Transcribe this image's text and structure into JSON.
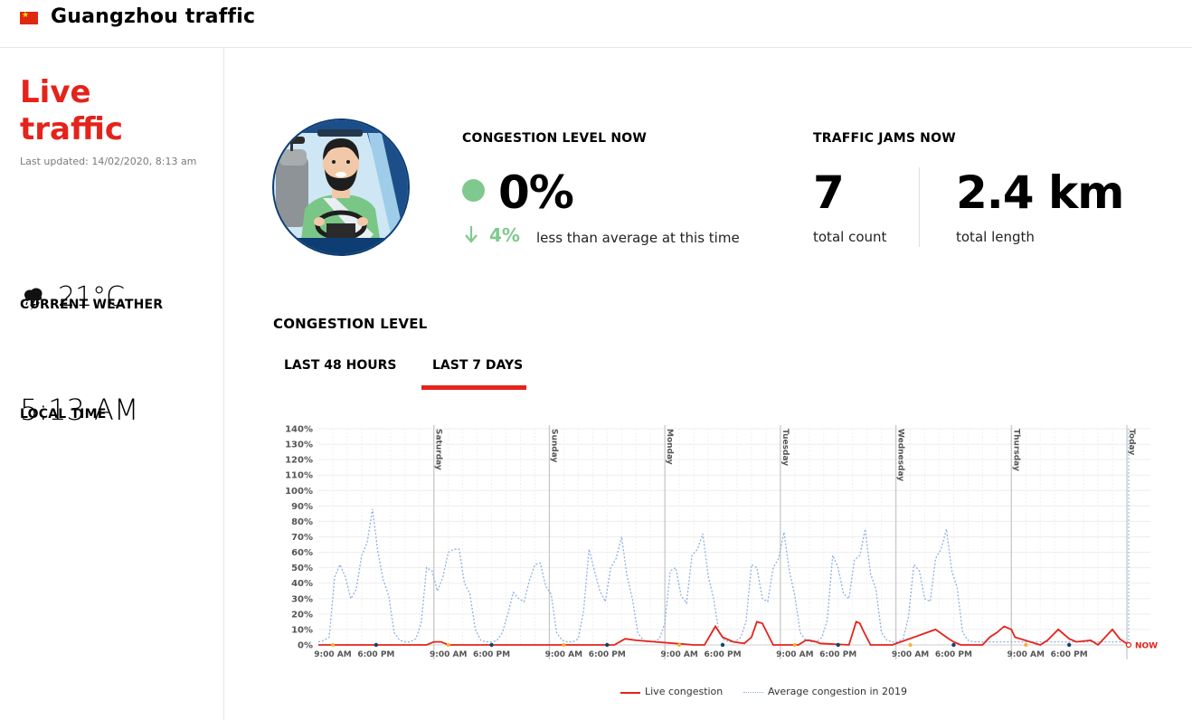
{
  "header": {
    "title": "Guangzhou traffic",
    "flag_color": "#de2910"
  },
  "sidebar": {
    "live_title": "Live traffic",
    "last_updated": "Last updated: 14/02/2020, 8:13 am",
    "weather_label": "CURRENT WEATHER",
    "weather_icon": "storm-cloud-icon",
    "temperature": "21°C",
    "local_time_label": "LOCAL TIME",
    "local_time": "5:13 AM"
  },
  "metrics": {
    "congestion_label": "CONGESTION LEVEL NOW",
    "congestion_value": "0%",
    "congestion_status_color": "#7fc98f",
    "trend_value": "4%",
    "trend_text": "less than average at this time",
    "jams_label": "TRAFFIC JAMS NOW",
    "jams_count": "7",
    "jams_count_label": "total count",
    "jams_length": "2.4 km",
    "jams_length_label": "total length"
  },
  "congestion_section": {
    "title": "CONGESTION LEVEL",
    "tabs": [
      {
        "label": "LAST 48 HOURS",
        "active": false
      },
      {
        "label": "LAST 7 DAYS",
        "active": true
      }
    ]
  },
  "chart_data": {
    "type": "line",
    "title": "CONGESTION LEVEL",
    "y_ticks": [
      "0%",
      "10%",
      "20%",
      "30%",
      "40%",
      "50%",
      "60%",
      "70%",
      "80%",
      "90%",
      "100%",
      "110%",
      "120%",
      "130%",
      "140%"
    ],
    "ylim": [
      0,
      140
    ],
    "day_labels": [
      "Saturday",
      "Sunday",
      "Monday",
      "Tuesday",
      "Wednesday",
      "Thursday",
      "Today"
    ],
    "x_tick_labels": [
      "9:00 AM",
      "6:00 PM"
    ],
    "now_label": "NOW",
    "legend": [
      {
        "name": "Live congestion",
        "color": "#e4231b",
        "style": "solid"
      },
      {
        "name": "Average congestion in 2019",
        "color": "#8fb0de",
        "style": "dotted"
      }
    ],
    "series": [
      {
        "name": "Live congestion",
        "hours": [
          0,
          60,
          64,
          68,
          72,
          164,
          170,
          176,
          208,
          214,
          220,
          224,
          230,
          236,
          240,
          243,
          246,
          252,
          258,
          266,
          270,
          272,
          276,
          278,
          294,
          298,
          300,
          302,
          306,
          310,
          318,
          342,
          348,
          352,
          356,
          368,
          372,
          376,
          380,
          384,
          386,
          400,
          404,
          410,
          416,
          420,
          428,
          432,
          440,
          444,
          449
        ],
        "values": [
          0,
          0,
          2,
          2,
          0,
          0,
          4,
          3,
          0,
          0,
          12,
          5,
          2,
          1,
          5,
          15,
          14,
          0,
          0,
          0,
          3,
          3,
          2,
          1,
          0,
          15,
          14,
          9,
          0,
          0,
          0,
          10,
          5,
          2,
          0,
          0,
          5,
          8,
          12,
          10,
          5,
          0,
          3,
          10,
          4,
          2,
          3,
          0,
          10,
          4,
          0
        ]
      },
      {
        "name": "Average congestion in 2019",
        "hours": [
          0,
          3,
          6,
          9,
          12,
          15,
          18,
          21,
          24,
          27,
          30,
          33,
          36,
          39,
          42,
          45,
          48,
          51,
          54,
          57,
          60,
          63,
          66,
          69,
          72,
          75,
          78,
          81,
          84,
          87,
          90,
          93,
          96,
          99,
          102,
          105,
          108,
          111,
          114,
          117,
          120,
          123,
          126,
          129,
          132,
          135,
          138,
          141,
          144,
          147,
          150,
          153,
          156,
          159,
          162,
          165,
          168,
          171,
          174,
          177,
          180,
          183,
          186,
          189,
          192,
          195,
          198,
          201,
          204,
          207,
          210,
          213,
          216,
          219,
          222,
          225,
          228,
          231,
          234,
          237,
          240,
          243,
          246,
          249,
          252,
          255,
          258,
          261,
          264,
          267,
          270,
          273,
          276,
          279,
          282,
          285,
          288,
          291,
          294,
          297,
          300,
          303,
          306,
          309,
          312,
          315,
          318,
          321,
          324,
          327,
          330,
          333,
          336,
          339,
          342,
          345,
          348,
          351,
          354,
          357,
          360,
          363,
          366,
          369,
          372,
          375,
          378,
          381,
          384,
          387,
          390,
          393,
          396,
          399,
          402,
          405,
          408,
          411,
          414,
          417,
          420,
          423,
          426,
          429,
          432,
          435,
          438,
          441,
          444,
          447,
          449
        ],
        "values": [
          2,
          3,
          5,
          44,
          52,
          44,
          30,
          36,
          58,
          66,
          88,
          60,
          42,
          32,
          8,
          3,
          2,
          2,
          4,
          14,
          50,
          48,
          35,
          44,
          60,
          62,
          62,
          40,
          33,
          10,
          3,
          2,
          2,
          3,
          8,
          20,
          34,
          30,
          28,
          42,
          52,
          53,
          38,
          33,
          8,
          3,
          2,
          2,
          4,
          22,
          62,
          48,
          35,
          28,
          50,
          56,
          70,
          45,
          30,
          8,
          3,
          2,
          2,
          4,
          14,
          48,
          50,
          32,
          27,
          58,
          62,
          72,
          45,
          30,
          8,
          3,
          2,
          2,
          5,
          15,
          52,
          50,
          30,
          28,
          50,
          56,
          73,
          48,
          32,
          8,
          3,
          2,
          2,
          5,
          16,
          58,
          50,
          33,
          30,
          55,
          58,
          75,
          46,
          36,
          8,
          3,
          2,
          2,
          4,
          18,
          52,
          48,
          30,
          28,
          56,
          62,
          75,
          48,
          37,
          8,
          3,
          2,
          2,
          2,
          2,
          2,
          2,
          2,
          2,
          2,
          2,
          2,
          2,
          2,
          2,
          2,
          2,
          2,
          2,
          2,
          2,
          2,
          2,
          2,
          2,
          2,
          2,
          2,
          2,
          2,
          2
        ]
      }
    ],
    "day_start_hours": [
      64,
      128,
      192,
      256,
      320,
      384,
      448
    ],
    "marker_hours_morning": [
      8,
      72,
      136,
      200,
      264,
      328,
      392
    ],
    "marker_hours_evening": [
      32,
      96,
      160,
      224,
      288,
      352,
      416
    ]
  }
}
